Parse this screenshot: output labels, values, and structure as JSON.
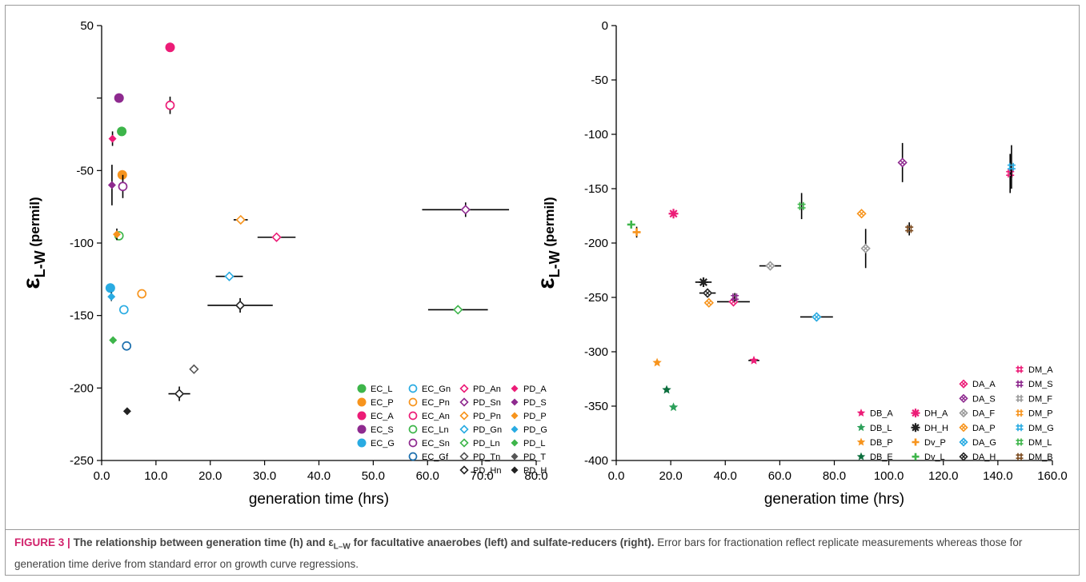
{
  "caption": {
    "label": "FIGURE 3 |",
    "title": "The relationship between generation time (h) and ε",
    "title_sub": "L–W",
    "title_end": " for facultative anaerobes (left) and sulfate-reducers (right).",
    "body": " Error bars for fractionation reflect replicate measurements whereas those for generation time derive from standard error on growth curve regressions."
  },
  "chart_data": [
    {
      "type": "scatter",
      "xlabel": "generation time (hrs)",
      "ylabel_main": "ε",
      "ylabel_sub": "L-W",
      "ylabel_unit": "(permil)",
      "xlim": [
        0,
        80
      ],
      "ylim": [
        -250,
        50
      ],
      "xticks": [
        "0.0",
        "10.0",
        "20.0",
        "30.0",
        "40.0",
        "50.0",
        "60.0",
        "70.0",
        "80.0"
      ],
      "yticks": [
        "50",
        "-50",
        "-100",
        "-150",
        "-200",
        "-250"
      ],
      "ytick_values": [
        50,
        -50,
        -100,
        -150,
        -200,
        -250
      ],
      "minor_y_ticks": [
        0
      ],
      "grid": false,
      "legend_position": "bottom-right",
      "legend": [
        {
          "name": "EC_L",
          "marker": "circle",
          "color": "#3db54a"
        },
        {
          "name": "EC_P",
          "marker": "circle",
          "color": "#f7941d"
        },
        {
          "name": "EC_A",
          "marker": "circle",
          "color": "#ec1c77"
        },
        {
          "name": "EC_S",
          "marker": "circle",
          "color": "#8e2a8f"
        },
        {
          "name": "EC_G",
          "marker": "circle",
          "color": "#29abe2"
        },
        {
          "name": "EC_Gn",
          "marker": "ring",
          "color": "#29abe2"
        },
        {
          "name": "EC_Pn",
          "marker": "ring",
          "color": "#f7941d"
        },
        {
          "name": "EC_An",
          "marker": "ring",
          "color": "#ec1c77"
        },
        {
          "name": "EC_Ln",
          "marker": "ring",
          "color": "#3db54a"
        },
        {
          "name": "EC_Sn",
          "marker": "ring",
          "color": "#8e2a8f"
        },
        {
          "name": "EC_Gf",
          "marker": "ring",
          "color": "#1b6fae"
        },
        {
          "name": "PD_An",
          "marker": "diamond-open",
          "color": "#ec1c77"
        },
        {
          "name": "PD_Sn",
          "marker": "diamond-open",
          "color": "#8e2a8f"
        },
        {
          "name": "PD_Pn",
          "marker": "diamond-open",
          "color": "#f7941d"
        },
        {
          "name": "PD_Gn",
          "marker": "diamond-open",
          "color": "#29abe2"
        },
        {
          "name": "PD_Ln",
          "marker": "diamond-open",
          "color": "#3db54a"
        },
        {
          "name": "PD_Tn",
          "marker": "diamond-open",
          "color": "#555555"
        },
        {
          "name": "PD_Hn",
          "marker": "diamond-open",
          "color": "#222222"
        },
        {
          "name": "PD_A",
          "marker": "diamond",
          "color": "#ec1c77"
        },
        {
          "name": "PD_S",
          "marker": "diamond",
          "color": "#8e2a8f"
        },
        {
          "name": "PD_P",
          "marker": "diamond",
          "color": "#f7941d"
        },
        {
          "name": "PD_G",
          "marker": "diamond",
          "color": "#29abe2"
        },
        {
          "name": "PD_L",
          "marker": "diamond",
          "color": "#3db54a"
        },
        {
          "name": "PD_T",
          "marker": "diamond",
          "color": "#555555"
        },
        {
          "name": "PD_H",
          "marker": "diamond",
          "color": "#222222"
        }
      ],
      "points": [
        {
          "series": "EC_A",
          "x": 12.6,
          "y": 35
        },
        {
          "series": "EC_S",
          "x": 3.2,
          "y": 0
        },
        {
          "series": "EC_L",
          "x": 3.7,
          "y": -23
        },
        {
          "series": "EC_P",
          "x": 3.8,
          "y": -53
        },
        {
          "series": "EC_G",
          "x": 1.6,
          "y": -131
        },
        {
          "series": "EC_An",
          "x": 12.6,
          "y": -5,
          "yerr": 6
        },
        {
          "series": "EC_Sn",
          "x": 3.9,
          "y": -61,
          "yerr": 8
        },
        {
          "series": "EC_Ln",
          "x": 3.2,
          "y": -95
        },
        {
          "series": "EC_Pn",
          "x": 7.4,
          "y": -135
        },
        {
          "series": "EC_Gn",
          "x": 4.1,
          "y": -146
        },
        {
          "series": "EC_Gf",
          "x": 4.6,
          "y": -171
        },
        {
          "series": "PD_An",
          "x": 32.2,
          "y": -96,
          "xerr": 3.5
        },
        {
          "series": "PD_Sn",
          "x": 67.0,
          "y": -77,
          "xerr": 8,
          "yerr": 5
        },
        {
          "series": "PD_Pn",
          "x": 25.6,
          "y": -84,
          "xerr": 1.3
        },
        {
          "series": "PD_Gn",
          "x": 23.5,
          "y": -123,
          "xerr": 2.5,
          "yerr": 3
        },
        {
          "series": "PD_Ln",
          "x": 65.6,
          "y": -146,
          "xerr": 5.5
        },
        {
          "series": "PD_Tn",
          "x": 17.0,
          "y": -187,
          "yerr": 3
        },
        {
          "series": "PD_Hn",
          "x": 14.3,
          "y": -204,
          "xerr": 2,
          "yerr": 5
        },
        {
          "series": "PD_Hn",
          "x": 25.5,
          "y": -143,
          "xerr": 6,
          "yerr": 5
        },
        {
          "series": "PD_A",
          "x": 2.0,
          "y": -28,
          "yerr": 5
        },
        {
          "series": "PD_S",
          "x": 1.9,
          "y": -60,
          "yerr": 14
        },
        {
          "series": "PD_P",
          "x": 2.8,
          "y": -94,
          "yerr": 4
        },
        {
          "series": "PD_G",
          "x": 1.8,
          "y": -137,
          "yerr": 3
        },
        {
          "series": "PD_L",
          "x": 2.1,
          "y": -167
        },
        {
          "series": "PD_H",
          "x": 4.7,
          "y": -216
        }
      ]
    },
    {
      "type": "scatter",
      "xlabel": "generation time (hrs)",
      "ylabel_main": "ε",
      "ylabel_sub": "L-W",
      "ylabel_unit": "(permil)",
      "xlim": [
        0,
        160
      ],
      "ylim": [
        -400,
        0
      ],
      "xticks": [
        "0.0",
        "20.0",
        "40.0",
        "60.0",
        "80.0",
        "100.0",
        "120.0",
        "140.0",
        "160.0"
      ],
      "yticks": [
        "0",
        "-50",
        "-100",
        "-150",
        "-200",
        "-250",
        "-300",
        "-350",
        "-400"
      ],
      "ytick_values": [
        0,
        -50,
        -100,
        -150,
        -200,
        -250,
        -300,
        -350,
        -400
      ],
      "minor_y_ticks": [],
      "grid": false,
      "legend_position": "bottom-right",
      "legend": [
        {
          "name": "DB_A",
          "marker": "star",
          "color": "#ec1c77"
        },
        {
          "name": "DB_L",
          "marker": "star",
          "color": "#2ca05a"
        },
        {
          "name": "DB_P",
          "marker": "star",
          "color": "#f7941d"
        },
        {
          "name": "DB_E",
          "marker": "star",
          "color": "#0a6e3c"
        },
        {
          "name": "DH_A",
          "marker": "asterisk",
          "color": "#ec1c77"
        },
        {
          "name": "DH_H",
          "marker": "asterisk",
          "color": "#222222"
        },
        {
          "name": "Dv_P",
          "marker": "plus",
          "color": "#f7941d"
        },
        {
          "name": "Dv_L",
          "marker": "plus",
          "color": "#3db54a"
        },
        {
          "name": "DA_A",
          "marker": "diamond-x",
          "color": "#ec1c77"
        },
        {
          "name": "DA_S",
          "marker": "diamond-x",
          "color": "#8e2a8f"
        },
        {
          "name": "DA_F",
          "marker": "diamond-x",
          "color": "#999999"
        },
        {
          "name": "DA_P",
          "marker": "diamond-x",
          "color": "#f7941d"
        },
        {
          "name": "DA_G",
          "marker": "diamond-x",
          "color": "#29abe2"
        },
        {
          "name": "DA_H",
          "marker": "diamond-x",
          "color": "#222222"
        },
        {
          "name": "DM_A",
          "marker": "hash",
          "color": "#ec1c77"
        },
        {
          "name": "DM_S",
          "marker": "hash",
          "color": "#8e2a8f"
        },
        {
          "name": "DM_F",
          "marker": "hash",
          "color": "#999999"
        },
        {
          "name": "DM_P",
          "marker": "hash",
          "color": "#f7941d"
        },
        {
          "name": "DM_G",
          "marker": "hash",
          "color": "#29abe2"
        },
        {
          "name": "DM_L",
          "marker": "hash",
          "color": "#3db54a"
        },
        {
          "name": "DM_B",
          "marker": "hash",
          "color": "#7b4a1e"
        }
      ],
      "points": [
        {
          "series": "DB_A",
          "x": 50.5,
          "y": -308,
          "xerr": 2
        },
        {
          "series": "DB_L",
          "x": 21.0,
          "y": -351
        },
        {
          "series": "DB_P",
          "x": 15.0,
          "y": -310
        },
        {
          "series": "DB_E",
          "x": 18.5,
          "y": -335
        },
        {
          "series": "DH_A",
          "x": 21.0,
          "y": -173
        },
        {
          "series": "DH_H",
          "x": 32.0,
          "y": -236,
          "xerr": 3
        },
        {
          "series": "Dv_P",
          "x": 7.5,
          "y": -190,
          "yerr": 5
        },
        {
          "series": "Dv_L",
          "x": 5.5,
          "y": -183
        },
        {
          "series": "DA_A",
          "x": 43.0,
          "y": -254,
          "xerr": 6
        },
        {
          "series": "DA_S",
          "x": 105.0,
          "y": -126,
          "yerr": 18
        },
        {
          "series": "DA_F",
          "x": 56.5,
          "y": -221,
          "xerr": 4
        },
        {
          "series": "DA_F",
          "x": 91.5,
          "y": -205,
          "yerr": 18
        },
        {
          "series": "DA_P",
          "x": 34.0,
          "y": -255
        },
        {
          "series": "DA_P",
          "x": 90.0,
          "y": -173
        },
        {
          "series": "DA_G",
          "x": 73.5,
          "y": -268,
          "xerr": 6,
          "yerr": 4
        },
        {
          "series": "DA_H",
          "x": 33.5,
          "y": -246,
          "xerr": 3
        },
        {
          "series": "DM_A",
          "x": 144.5,
          "y": -136,
          "yerr": 18
        },
        {
          "series": "DM_S",
          "x": 43.5,
          "y": -250,
          "yerr": 4
        },
        {
          "series": "DM_G",
          "x": 145.0,
          "y": -130,
          "yerr": 20
        },
        {
          "series": "DM_L",
          "x": 68.0,
          "y": -166,
          "yerr": 12
        },
        {
          "series": "DM_B",
          "x": 107.5,
          "y": -187,
          "yerr": 6
        }
      ]
    }
  ]
}
